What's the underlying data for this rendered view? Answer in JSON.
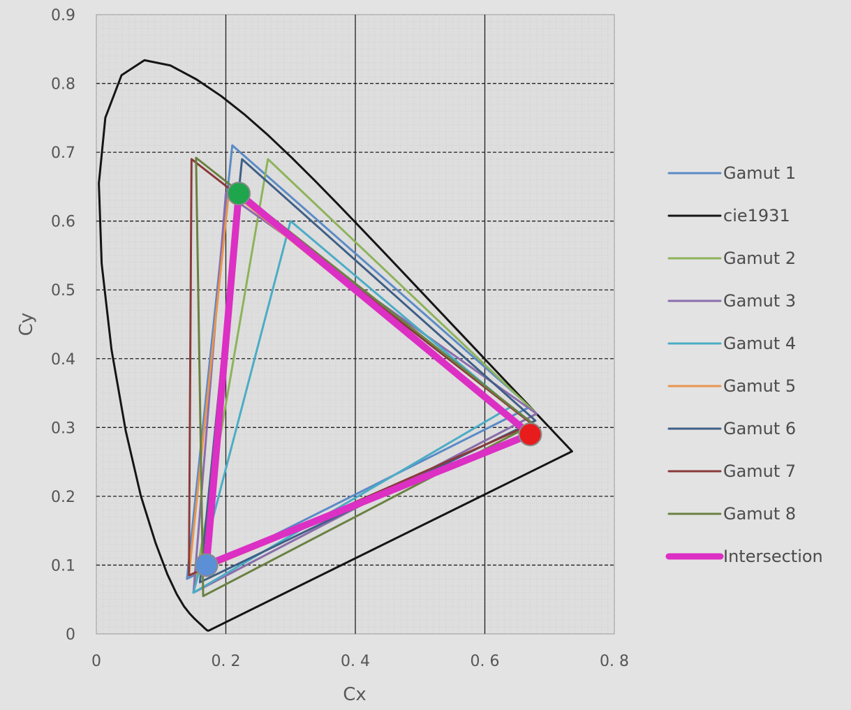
{
  "chart_data": {
    "type": "line",
    "xlabel": "Cx",
    "ylabel": "Cy",
    "xlim": [
      0,
      0.8
    ],
    "ylim": [
      0,
      0.9
    ],
    "x_ticks": [
      {
        "value": 0,
        "label": "0"
      },
      {
        "value": 0.2,
        "label": "0. 2"
      },
      {
        "value": 0.4,
        "label": "0. 4"
      },
      {
        "value": 0.6,
        "label": "0. 6"
      },
      {
        "value": 0.8,
        "label": "0. 8"
      }
    ],
    "y_ticks": [
      {
        "value": 0,
        "label": "0"
      },
      {
        "value": 0.1,
        "label": "0.1"
      },
      {
        "value": 0.2,
        "label": "0.2"
      },
      {
        "value": 0.3,
        "label": "0.3"
      },
      {
        "value": 0.4,
        "label": "0.4"
      },
      {
        "value": 0.5,
        "label": "0.5"
      },
      {
        "value": 0.6,
        "label": "0.6"
      },
      {
        "value": 0.7,
        "label": "0.7"
      },
      {
        "value": 0.8,
        "label": "0.8"
      },
      {
        "value": 0.9,
        "label": "0.9"
      }
    ],
    "grid": {
      "major_x": "solid",
      "major_y": "dashed",
      "minor": true
    },
    "legend_position": "right",
    "series": [
      {
        "name": "Gamut 1",
        "color": "#5b8bc6",
        "width": 3,
        "points": [
          [
            0.67,
            0.33
          ],
          [
            0.21,
            0.71
          ],
          [
            0.14,
            0.08
          ],
          [
            0.67,
            0.33
          ]
        ]
      },
      {
        "name": "cie1931",
        "color": "#151515",
        "width": 3,
        "points": [
          [
            0.1741,
            0.005
          ],
          [
            0.1738,
            0.0049
          ],
          [
            0.1736,
            0.0049
          ],
          [
            0.1733,
            0.0048
          ],
          [
            0.173,
            0.0048
          ],
          [
            0.1726,
            0.0048
          ],
          [
            0.1721,
            0.0048
          ],
          [
            0.1714,
            0.0051
          ],
          [
            0.1703,
            0.0058
          ],
          [
            0.1689,
            0.0069
          ],
          [
            0.1669,
            0.0086
          ],
          [
            0.1644,
            0.0109
          ],
          [
            0.1611,
            0.0138
          ],
          [
            0.1566,
            0.0177
          ],
          [
            0.151,
            0.0227
          ],
          [
            0.144,
            0.0297
          ],
          [
            0.1355,
            0.0399
          ],
          [
            0.1241,
            0.0578
          ],
          [
            0.1096,
            0.0868
          ],
          [
            0.0913,
            0.1327
          ],
          [
            0.0687,
            0.2007
          ],
          [
            0.0454,
            0.295
          ],
          [
            0.0235,
            0.4127
          ],
          [
            0.0082,
            0.5384
          ],
          [
            0.0039,
            0.6548
          ],
          [
            0.0139,
            0.7502
          ],
          [
            0.0389,
            0.812
          ],
          [
            0.0743,
            0.8338
          ],
          [
            0.1142,
            0.8262
          ],
          [
            0.1547,
            0.8059
          ],
          [
            0.1929,
            0.7816
          ],
          [
            0.2296,
            0.7543
          ],
          [
            0.2658,
            0.7243
          ],
          [
            0.3016,
            0.6923
          ],
          [
            0.3373,
            0.6589
          ],
          [
            0.3731,
            0.6245
          ],
          [
            0.4087,
            0.5896
          ],
          [
            0.4441,
            0.5547
          ],
          [
            0.4788,
            0.5202
          ],
          [
            0.5125,
            0.4866
          ],
          [
            0.5448,
            0.4544
          ],
          [
            0.5752,
            0.4242
          ],
          [
            0.6029,
            0.3965
          ],
          [
            0.627,
            0.3725
          ],
          [
            0.6482,
            0.3514
          ],
          [
            0.6658,
            0.334
          ],
          [
            0.6801,
            0.3197
          ],
          [
            0.6915,
            0.3083
          ],
          [
            0.7006,
            0.2993
          ],
          [
            0.7079,
            0.292
          ],
          [
            0.714,
            0.2859
          ],
          [
            0.719,
            0.2809
          ],
          [
            0.723,
            0.277
          ],
          [
            0.726,
            0.274
          ],
          [
            0.7283,
            0.2717
          ],
          [
            0.73,
            0.27
          ],
          [
            0.7311,
            0.2689
          ],
          [
            0.732,
            0.268
          ],
          [
            0.7327,
            0.2673
          ],
          [
            0.7334,
            0.2666
          ],
          [
            0.734,
            0.266
          ],
          [
            0.7344,
            0.2656
          ],
          [
            0.7346,
            0.2654
          ],
          [
            0.7347,
            0.2653
          ],
          [
            0.1741,
            0.005
          ]
        ]
      },
      {
        "name": "Gamut 2",
        "color": "#8db35a",
        "width": 3,
        "points": [
          [
            0.68,
            0.32
          ],
          [
            0.265,
            0.69
          ],
          [
            0.15,
            0.06
          ],
          [
            0.68,
            0.32
          ]
        ]
      },
      {
        "name": "Gamut 3",
        "color": "#8b6cad",
        "width": 3,
        "points": [
          [
            0.68,
            0.32
          ],
          [
            0.2,
            0.64
          ],
          [
            0.15,
            0.06
          ],
          [
            0.68,
            0.32
          ]
        ]
      },
      {
        "name": "Gamut 4",
        "color": "#4bacc6",
        "width": 3,
        "points": [
          [
            0.64,
            0.33
          ],
          [
            0.3,
            0.6
          ],
          [
            0.15,
            0.06
          ],
          [
            0.64,
            0.33
          ]
        ]
      },
      {
        "name": "Gamut 5",
        "color": "#e8954f",
        "width": 3,
        "points": [
          [
            0.67,
            0.29
          ],
          [
            0.205,
            0.645
          ],
          [
            0.143,
            0.085
          ],
          [
            0.67,
            0.29
          ]
        ]
      },
      {
        "name": "Gamut 6",
        "color": "#3f5f86",
        "width": 3,
        "points": [
          [
            0.678,
            0.31
          ],
          [
            0.225,
            0.69
          ],
          [
            0.16,
            0.075
          ],
          [
            0.678,
            0.31
          ]
        ]
      },
      {
        "name": "Gamut 7",
        "color": "#8a3a3a",
        "width": 3,
        "points": [
          [
            0.673,
            0.305
          ],
          [
            0.147,
            0.69
          ],
          [
            0.143,
            0.085
          ],
          [
            0.673,
            0.305
          ]
        ]
      },
      {
        "name": "Gamut 8",
        "color": "#6a8142",
        "width": 3,
        "points": [
          [
            0.675,
            0.305
          ],
          [
            0.154,
            0.692
          ],
          [
            0.165,
            0.055
          ],
          [
            0.675,
            0.305
          ]
        ]
      },
      {
        "name": "Intersection",
        "color": "#dc2fc4",
        "width": 10,
        "points": [
          [
            0.67,
            0.29
          ],
          [
            0.22,
            0.64
          ],
          [
            0.17,
            0.1
          ],
          [
            0.67,
            0.29
          ]
        ]
      }
    ],
    "markers": [
      {
        "x": 0.67,
        "y": 0.29,
        "color": "#e81c1c",
        "name": "red-primary-marker"
      },
      {
        "x": 0.22,
        "y": 0.64,
        "color": "#1fa54b",
        "name": "green-primary-marker"
      },
      {
        "x": 0.17,
        "y": 0.1,
        "color": "#5b8fd6",
        "name": "blue-primary-marker"
      }
    ]
  }
}
